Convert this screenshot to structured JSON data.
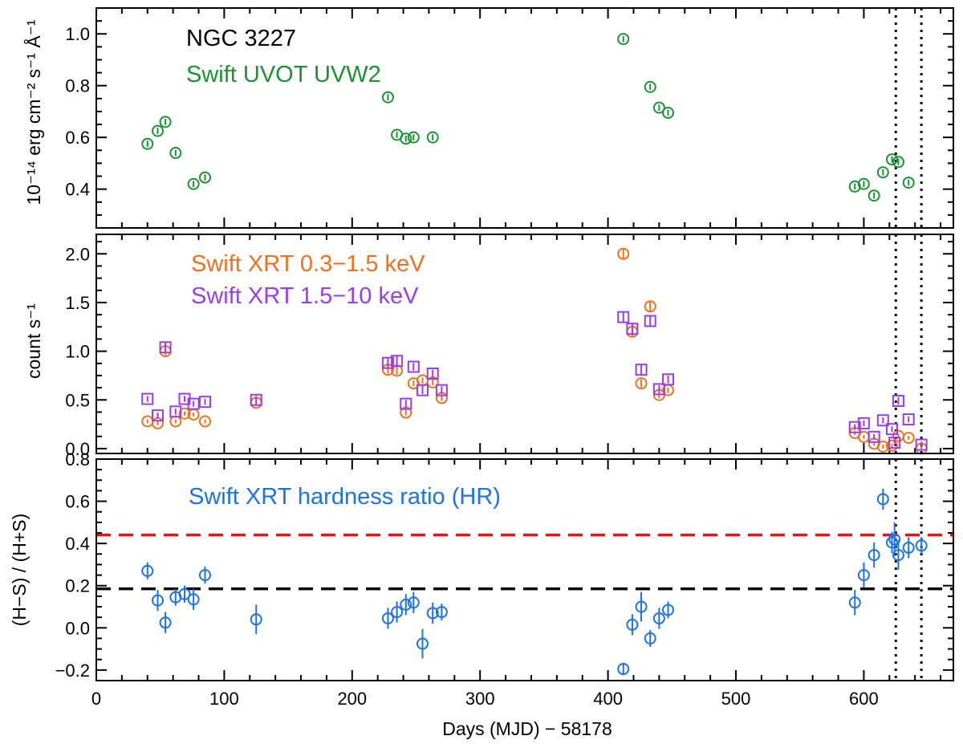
{
  "colors": {
    "uvw2": "#1a9333",
    "soft": "#f2701c",
    "hard": "#9a3cf0",
    "hr": "#1a73e8",
    "red_line": "#e8121a",
    "black_line": "#000000"
  },
  "chart_data": {
    "type": "scatter",
    "shared_x": {
      "label": "Days (MJD) − 58178",
      "xlim": [
        0,
        670
      ],
      "ticks": [
        0,
        100,
        200,
        300,
        400,
        500,
        600
      ],
      "tick_labels": [
        "0",
        "100",
        "200",
        "300",
        "400",
        "500",
        "600"
      ],
      "dotted_vlines": [
        625,
        645
      ]
    },
    "panels": [
      {
        "id": "uv",
        "ylabel": "10⁻¹⁴ erg cm⁻² s⁻¹ Å⁻¹",
        "ylim": [
          0.25,
          1.1
        ],
        "yticks": [
          0.4,
          0.6,
          0.8,
          1.0
        ],
        "ytick_labels": [
          "0.4",
          "0.6",
          "0.8",
          "1.0"
        ],
        "legend": [
          {
            "text": "NGC 3227",
            "color": "#000000"
          },
          {
            "text": "Swift UVOT UVW2",
            "color": "#1a9333"
          }
        ],
        "series": [
          {
            "name": "Swift UVOT UVW2",
            "color": "#1a9333",
            "marker": "circle",
            "x": [
              40,
              48,
              54,
              62,
              76,
              85,
              228,
              235,
              242,
              248,
              263,
              412,
              433,
              440,
              447,
              593,
              600,
              608,
              615,
              622,
              627,
              635
            ],
            "y": [
              0.575,
              0.625,
              0.66,
              0.54,
              0.42,
              0.445,
              0.755,
              0.61,
              0.595,
              0.6,
              0.6,
              0.98,
              0.795,
              0.715,
              0.695,
              0.41,
              0.42,
              0.375,
              0.465,
              0.515,
              0.505,
              0.425
            ],
            "err": [
              0.012,
              0.012,
              0.012,
              0.012,
              0.012,
              0.012,
              0.012,
              0.012,
              0.012,
              0.012,
              0.012,
              0.012,
              0.012,
              0.012,
              0.012,
              0.012,
              0.012,
              0.012,
              0.012,
              0.012,
              0.012,
              0.012
            ]
          }
        ]
      },
      {
        "id": "xrt",
        "ylabel": "count s⁻¹",
        "ylim": [
          -0.05,
          2.2
        ],
        "yticks": [
          0.0,
          0.5,
          1.0,
          1.5,
          2.0
        ],
        "ytick_labels": [
          "0.0",
          "0.5",
          "1.0",
          "1.5",
          "2.0"
        ],
        "legend": [
          {
            "text": "Swift XRT 0.3−1.5 keV",
            "color": "#f2701c"
          },
          {
            "text": "Swift XRT 1.5−10 keV",
            "color": "#9a3cf0"
          }
        ],
        "series": [
          {
            "name": "Swift XRT 0.3−1.5 keV",
            "color": "#f2701c",
            "marker": "circle",
            "x": [
              40,
              48,
              54,
              62,
              69,
              76,
              85,
              125,
              228,
              235,
              242,
              248,
              255,
              263,
              270,
              412,
              419,
              426,
              433,
              440,
              447,
              593,
              600,
              608,
              615,
              622,
              627,
              635,
              645
            ],
            "y": [
              0.28,
              0.26,
              1.0,
              0.28,
              0.36,
              0.35,
              0.28,
              0.47,
              0.81,
              0.8,
              0.37,
              0.67,
              0.7,
              0.68,
              0.52,
              2.0,
              1.2,
              0.67,
              1.46,
              0.55,
              0.6,
              0.16,
              0.12,
              0.05,
              0.02,
              0.03,
              0.13,
              0.11,
              0.0
            ],
            "err": [
              0.02,
              0.02,
              0.04,
              0.02,
              0.02,
              0.02,
              0.02,
              0.03,
              0.04,
              0.04,
              0.03,
              0.03,
              0.03,
              0.03,
              0.03,
              0.06,
              0.05,
              0.04,
              0.05,
              0.03,
              0.03,
              0.02,
              0.02,
              0.02,
              0.02,
              0.02,
              0.02,
              0.02,
              0.02
            ]
          },
          {
            "name": "Swift XRT 1.5−10 keV",
            "color": "#9a3cf0",
            "marker": "square",
            "x": [
              40,
              48,
              54,
              62,
              69,
              76,
              85,
              125,
              228,
              235,
              242,
              248,
              255,
              263,
              270,
              412,
              419,
              426,
              433,
              440,
              447,
              593,
              600,
              608,
              615,
              622,
              624,
              627,
              635,
              645
            ],
            "y": [
              0.51,
              0.34,
              1.04,
              0.38,
              0.51,
              0.46,
              0.48,
              0.5,
              0.88,
              0.9,
              0.46,
              0.84,
              0.6,
              0.77,
              0.6,
              1.35,
              1.23,
              0.81,
              1.31,
              0.61,
              0.71,
              0.22,
              0.26,
              0.12,
              0.29,
              0.2,
              0.06,
              0.49,
              0.3,
              0.04
            ],
            "err": [
              0.03,
              0.03,
              0.05,
              0.03,
              0.03,
              0.03,
              0.03,
              0.04,
              0.05,
              0.05,
              0.04,
              0.04,
              0.04,
              0.04,
              0.04,
              0.06,
              0.05,
              0.05,
              0.06,
              0.04,
              0.04,
              0.03,
              0.03,
              0.03,
              0.03,
              0.03,
              0.03,
              0.04,
              0.03,
              0.03
            ]
          }
        ]
      },
      {
        "id": "hr",
        "ylabel": "(H−S) / (H+S)",
        "ylim": [
          -0.25,
          0.8
        ],
        "yticks": [
          -0.2,
          0.0,
          0.2,
          0.4,
          0.6,
          0.8
        ],
        "ytick_labels": [
          "−0.2",
          "0.0",
          "0.2",
          "0.4",
          "0.6",
          "0.8"
        ],
        "legend": [
          {
            "text": "Swift XRT hardness ratio (HR)",
            "color": "#1a73e8"
          }
        ],
        "hlines": [
          {
            "y": 0.44,
            "color": "#e8121a",
            "style": "dashed"
          },
          {
            "y": 0.185,
            "color": "#000000",
            "style": "dashed"
          }
        ],
        "series": [
          {
            "name": "Swift XRT hardness ratio (HR)",
            "color": "#1a73e8",
            "marker": "circle",
            "x": [
              40,
              48,
              54,
              62,
              69,
              76,
              85,
              125,
              228,
              235,
              242,
              248,
              255,
              263,
              270,
              412,
              419,
              426,
              433,
              440,
              447,
              593,
              600,
              608,
              615,
              622,
              624,
              627,
              635,
              645
            ],
            "y": [
              0.27,
              0.13,
              0.025,
              0.145,
              0.16,
              0.135,
              0.25,
              0.04,
              0.045,
              0.075,
              0.11,
              0.12,
              -0.075,
              0.07,
              0.075,
              -0.195,
              0.015,
              0.1,
              -0.05,
              0.045,
              0.085,
              0.12,
              0.25,
              0.345,
              0.61,
              0.405,
              0.42,
              0.345,
              0.38,
              0.39
            ],
            "err": [
              0.04,
              0.05,
              0.05,
              0.04,
              0.04,
              0.05,
              0.04,
              0.07,
              0.05,
              0.05,
              0.05,
              0.05,
              0.07,
              0.05,
              0.04,
              0.03,
              0.05,
              0.07,
              0.04,
              0.05,
              0.04,
              0.06,
              0.06,
              0.06,
              0.05,
              0.05,
              0.08,
              0.07,
              0.05,
              0.04
            ]
          }
        ]
      }
    ]
  }
}
